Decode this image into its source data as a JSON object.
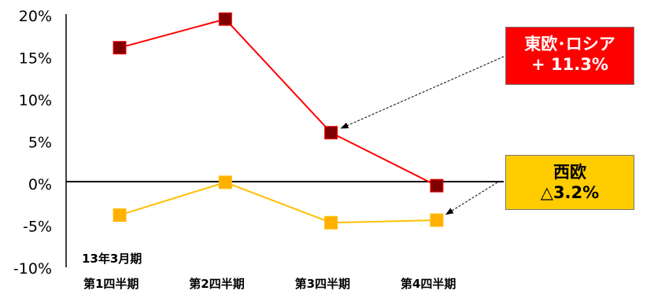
{
  "chart_data": {
    "type": "line",
    "categories": [
      "第1四半期",
      "第2四半期",
      "第3四半期",
      "第4四半期"
    ],
    "category_sublabel": "13年3月期",
    "yticks": [
      "20%",
      "15%",
      "10%",
      "5%",
      "0%",
      "-5%",
      "-10%"
    ],
    "ylim": [
      -10,
      20
    ],
    "series": [
      {
        "name": "東欧･ロシア",
        "values": [
          16.2,
          19.6,
          6.1,
          -0.2
        ],
        "color": "#ff0000",
        "marker_color": "#800000"
      },
      {
        "name": "西欧",
        "values": [
          -3.7,
          0.2,
          -4.6,
          -4.3
        ],
        "color": "#ffc000",
        "marker_color": "#ffb000"
      }
    ],
    "annotations": [
      {
        "lines": [
          "東欧･ロシア",
          "+ 11.3%"
        ],
        "series": 0,
        "point_index": 2,
        "background": "#ff0000",
        "text_color": "#ffffff"
      },
      {
        "lines": [
          "西欧",
          "△3.2%"
        ],
        "series": 1,
        "point_index": 3,
        "background": "#ffcc00",
        "text_color": "#000000"
      }
    ]
  }
}
